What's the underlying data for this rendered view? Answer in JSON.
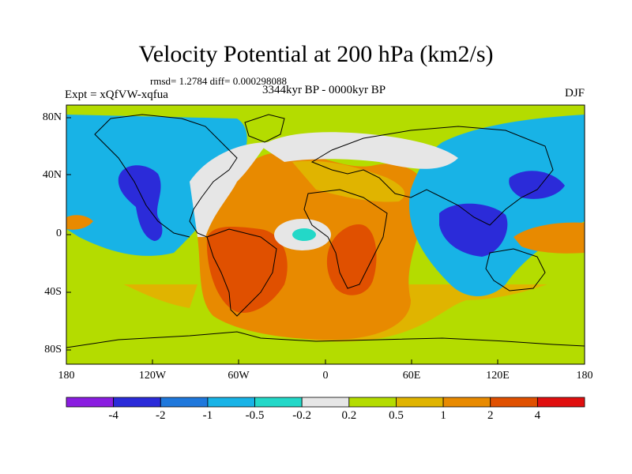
{
  "title": "Velocity Potential at 200 hPa (km2/s)",
  "stats": "rmsd= 1.2784 diff= 0.000298088",
  "period": "3344kyr BP - 0000kyr BP",
  "experiment": "Expt = xQfVW-xqfua",
  "season": "DJF",
  "lat_labels": [
    "80N",
    "40N",
    "0",
    "40S",
    "80S"
  ],
  "lon_labels": [
    "180",
    "120W",
    "60W",
    "0",
    "60E",
    "120E",
    "180"
  ],
  "colorbar": {
    "labels": [
      "-4",
      "-2",
      "-1",
      "-0.5",
      "-0.2",
      "0.2",
      "0.5",
      "1",
      "2",
      "4"
    ],
    "colors": [
      "#8a1de0",
      "#2b2bd9",
      "#1f78dc",
      "#18b3e6",
      "#23d8c8",
      "#e6e6e6",
      "#b4dc00",
      "#e0b400",
      "#e88a00",
      "#e05000",
      "#e00f0f"
    ]
  }
}
